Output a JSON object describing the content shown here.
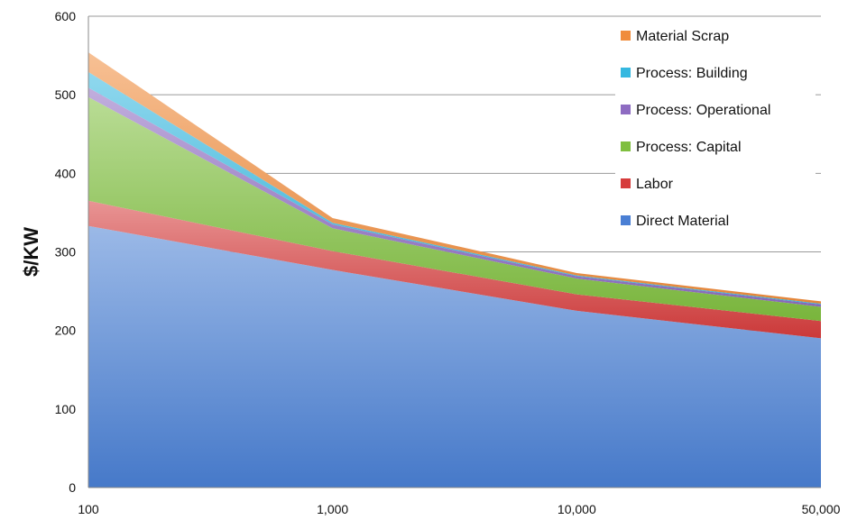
{
  "chart_data": {
    "type": "area",
    "stacked": true,
    "title": "",
    "xlabel": "",
    "ylabel": "$/KW",
    "x_tick_labels": [
      "100",
      "1,000",
      "10,000",
      "50,000"
    ],
    "x_scale": "categorical",
    "y_ticks": [
      "0",
      "100",
      "200",
      "300",
      "400",
      "500",
      "600"
    ],
    "ylim": [
      0,
      600
    ],
    "grid": "horizontal",
    "legend_position": "top-right",
    "series": [
      {
        "name": "Direct Material",
        "values": [
          333,
          277,
          225,
          190
        ],
        "color": "#4a7fd4"
      },
      {
        "name": "Labor",
        "values": [
          32,
          24,
          21,
          22
        ],
        "color": "#d63c3c"
      },
      {
        "name": "Process: Capital",
        "values": [
          132,
          29,
          20,
          18
        ],
        "color": "#7fbf3f"
      },
      {
        "name": "Process: Operational",
        "values": [
          12,
          5,
          3,
          3
        ],
        "color": "#8e6cc2"
      },
      {
        "name": "Process: Building",
        "values": [
          20,
          2,
          1,
          1
        ],
        "color": "#35b8e0"
      },
      {
        "name": "Material Scrap",
        "values": [
          25,
          6,
          3,
          3
        ],
        "color": "#f08c3c"
      }
    ]
  }
}
